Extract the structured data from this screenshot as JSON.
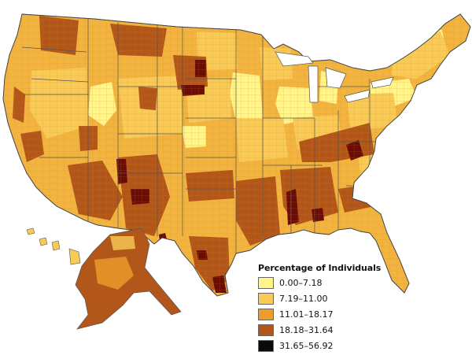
{
  "legend": {
    "title": "Percentage of Individuals",
    "classes": [
      {
        "label": "0.00–7.18",
        "color": "#fff588"
      },
      {
        "label": "7.19–11.00",
        "color": "#f9ca55"
      },
      {
        "label": "11.01–18.17",
        "color": "#ee9d2a"
      },
      {
        "label": "18.18–31.64",
        "color": "#b3561a"
      },
      {
        "label": "31.65–56.92",
        "color": "#0a0a0a"
      }
    ],
    "extreme_class_color_on_map": "#6b0c06"
  },
  "map": {
    "boundary_color": "#555555",
    "background": "#ffffff"
  }
}
